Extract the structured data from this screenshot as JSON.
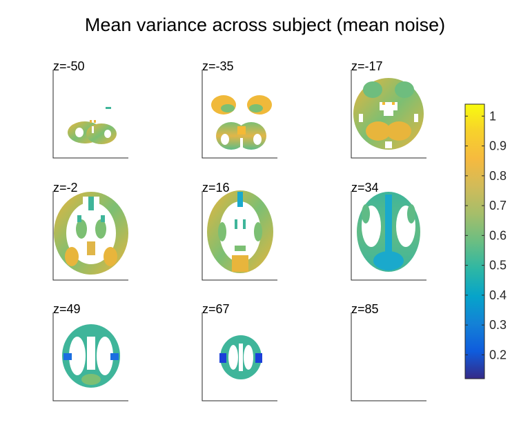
{
  "figure": {
    "title": "Mean variance across subject (mean noise)"
  },
  "slices": [
    {
      "label": "z=-50"
    },
    {
      "label": "z=-35"
    },
    {
      "label": "z=-17"
    },
    {
      "label": "z=-2"
    },
    {
      "label": "z=16"
    },
    {
      "label": "z=34"
    },
    {
      "label": "z=49"
    },
    {
      "label": "z=67"
    },
    {
      "label": "z=85"
    }
  ],
  "colorbar": {
    "colormap": "parula",
    "range": [
      0.12,
      1.04
    ],
    "ticks": [
      "0.2",
      "0.3",
      "0.4",
      "0.5",
      "0.6",
      "0.7",
      "0.8",
      "0.9",
      "1"
    ],
    "tick_values": [
      0.2,
      0.3,
      0.4,
      0.5,
      0.6,
      0.7,
      0.8,
      0.9,
      1.0
    ]
  },
  "colors": {
    "yellow_orange": "#f5b935",
    "orange": "#e8b53c",
    "green": "#7cbf73",
    "teal": "#3fb59a",
    "cyan": "#1aa9cc",
    "blue": "#1b5ee0",
    "dark_blue": "#352a87"
  }
}
